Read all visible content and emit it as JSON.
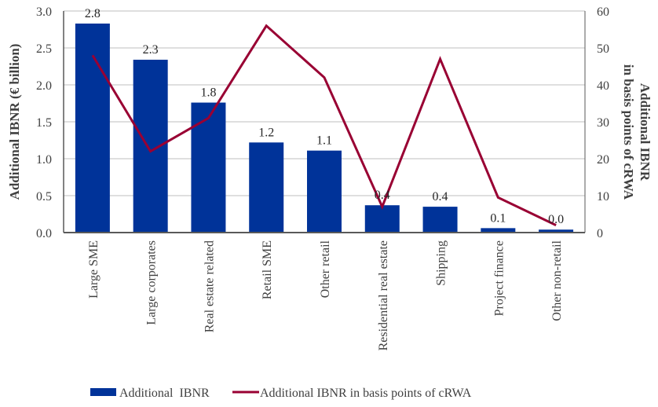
{
  "chart_data": {
    "type": "bar",
    "combo": "bar+line (dual axis)",
    "title": "",
    "categories": [
      "Large SME",
      "Large corporates",
      "Real estate related",
      "Retail SME",
      "Other retail",
      "Residential real estate",
      "Shipping",
      "Project finance",
      "Other non-retail"
    ],
    "series": [
      {
        "name": "Additional  IBNR",
        "type": "bar",
        "axis": "left",
        "color": "#003399",
        "values": [
          2.83,
          2.34,
          1.76,
          1.22,
          1.11,
          0.37,
          0.35,
          0.06,
          0.04
        ],
        "data_labels": [
          "2.8",
          "2.3",
          "1.8",
          "1.2",
          "1.1",
          "0.4",
          "0.4",
          "0.1",
          "0.0"
        ]
      },
      {
        "name": "Additional IBNR in basis points of cRWA",
        "type": "line",
        "axis": "right",
        "color": "#990033",
        "values": [
          48,
          22,
          31,
          56,
          42,
          7,
          47,
          9.5,
          2
        ]
      }
    ],
    "ylabel": "Additional IBNR (€ billion)",
    "y2label_lines": [
      "Additional IBNR",
      "in basis points of cRWA"
    ],
    "ylim": [
      0,
      3.0
    ],
    "y2lim": [
      0,
      60
    ],
    "yticks": [
      "0.0",
      "0.5",
      "1.0",
      "1.5",
      "2.0",
      "2.5",
      "3.0"
    ],
    "y2ticks": [
      "0",
      "10",
      "20",
      "30",
      "40",
      "50",
      "60"
    ],
    "grid": true,
    "legend_position": "bottom"
  }
}
